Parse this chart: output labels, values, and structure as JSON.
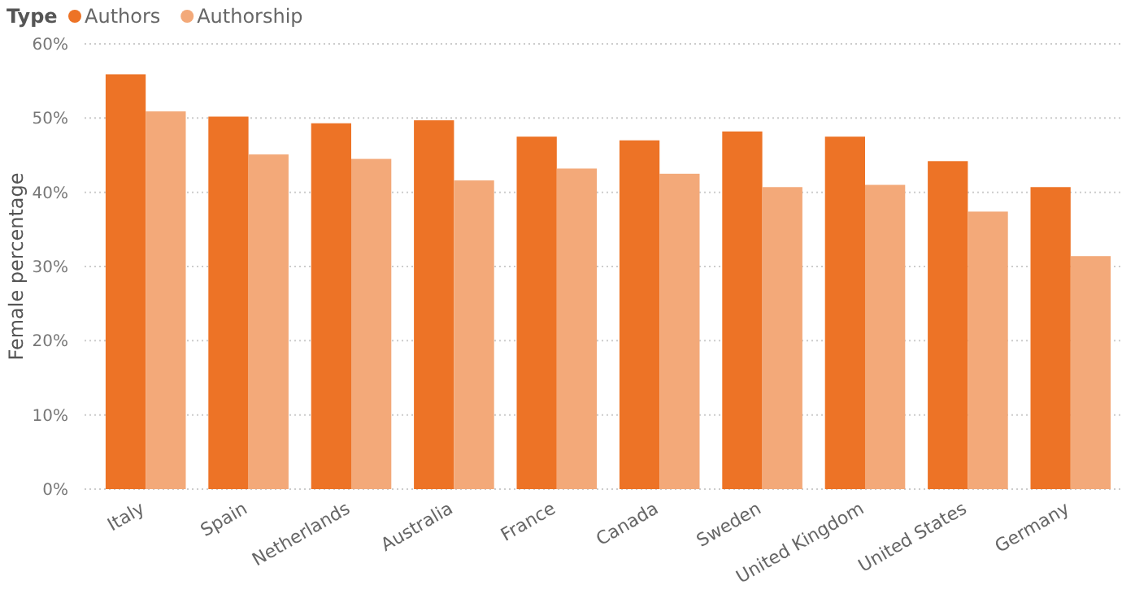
{
  "chart_data": {
    "type": "bar",
    "ylabel": "Female percentage",
    "legend_title": "Type",
    "legend": "top left",
    "grid": "y",
    "categories": [
      "Italy",
      "Spain",
      "Netherlands",
      "Australia",
      "France",
      "Canada",
      "Sweden",
      "United Kingdom",
      "United States",
      "Germany"
    ],
    "series": [
      {
        "name": "Authors",
        "color": "#ed7326",
        "values": [
          55.9,
          50.2,
          49.3,
          49.7,
          47.5,
          47.0,
          48.2,
          47.5,
          44.2,
          40.7
        ]
      },
      {
        "name": "Authorship",
        "color": "#f3a979",
        "values": [
          50.9,
          45.1,
          44.5,
          41.6,
          43.2,
          42.5,
          40.7,
          41.0,
          37.4,
          31.4
        ]
      }
    ],
    "ylim": [
      0,
      60
    ],
    "yticks": [
      {
        "value": 0,
        "label": "0%"
      },
      {
        "value": 10,
        "label": "10%"
      },
      {
        "value": 20,
        "label": "20%"
      },
      {
        "value": 30,
        "label": "30%"
      },
      {
        "value": 40,
        "label": "40%"
      },
      {
        "value": 50,
        "label": "50%"
      },
      {
        "value": 60,
        "label": "60%"
      }
    ]
  }
}
